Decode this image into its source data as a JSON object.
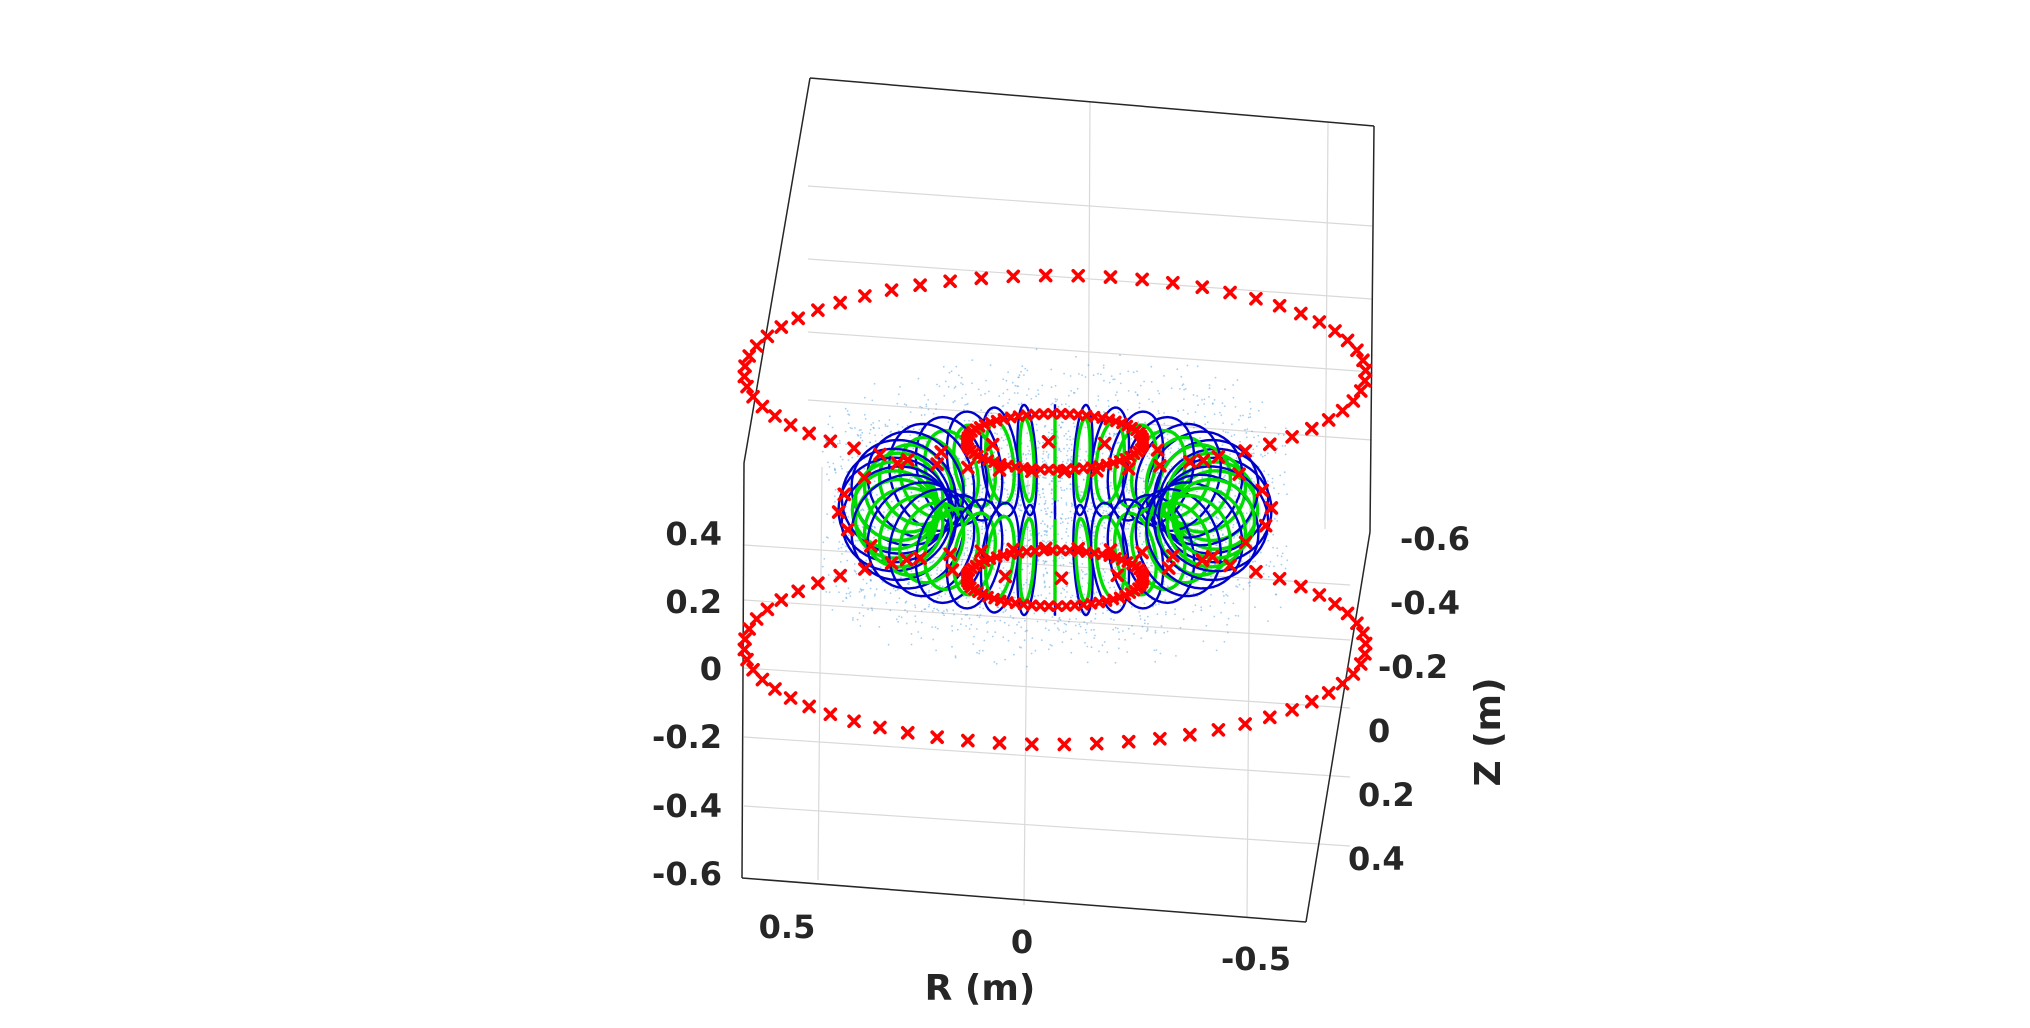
{
  "chart_data": {
    "type": "scatter",
    "title": "",
    "xlabel": "R (m)",
    "ylabel": "",
    "zlabel": "Z (m)",
    "view": "3d",
    "grid": true,
    "x_ticks": [
      "0.5",
      "0",
      "-0.5"
    ],
    "y_ticks": [
      "-0.6",
      "-0.4",
      "-0.2",
      "0",
      "0.2",
      "0.4"
    ],
    "z_ticks": [
      "0.4",
      "0.2",
      "0",
      "-0.2",
      "-0.4",
      "-0.6"
    ],
    "colors": {
      "marker": "#ff0000",
      "coil_outer": "#0000cc",
      "coil_inner": "#00dd00",
      "cloud": "#4a9ee0",
      "axes": "#262626",
      "grid": "#d9d9d9"
    },
    "series": [
      {
        "kind": "markers",
        "marker": "x",
        "r": 0.56,
        "z": 0.3,
        "count": 60
      },
      {
        "kind": "markers",
        "marker": "x",
        "r": 0.56,
        "z": -0.3,
        "count": 60
      },
      {
        "kind": "markers",
        "marker": "x",
        "r": 0.16,
        "z": 0.15,
        "count": 64
      },
      {
        "kind": "markers",
        "marker": "x",
        "r": 0.16,
        "z": -0.15,
        "count": 64
      },
      {
        "kind": "markers",
        "marker": "x",
        "r": 0.39,
        "z": 0.0,
        "count": 24
      },
      {
        "kind": "coils",
        "count": 36,
        "major_radius": 0.29,
        "minor_radius": 0.1,
        "inner_minor_radius": 0.075
      },
      {
        "kind": "point-cloud",
        "r_range": [
          0,
          0.42
        ],
        "z_range": [
          -0.2,
          0.2
        ]
      }
    ]
  }
}
